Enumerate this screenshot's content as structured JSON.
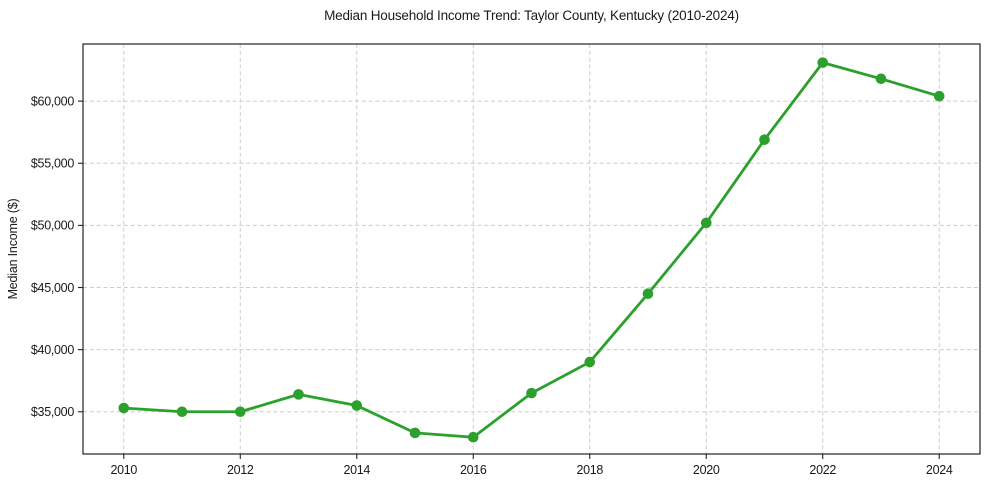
{
  "chart_data": {
    "type": "line",
    "title": "Median Household Income Trend: Taylor County, Kentucky (2010-2024)",
    "xlabel": "",
    "ylabel": "Median Income ($)",
    "x": [
      2010,
      2011,
      2012,
      2013,
      2014,
      2015,
      2016,
      2017,
      2018,
      2019,
      2020,
      2021,
      2022,
      2023,
      2024
    ],
    "series": [
      {
        "name": "Median Household Income",
        "values": [
          35300,
          35000,
          35000,
          36400,
          35500,
          33300,
          32950,
          36500,
          39000,
          44500,
          50200,
          56900,
          63100,
          61800,
          60400
        ]
      }
    ],
    "xticks": [
      2010,
      2012,
      2014,
      2016,
      2018,
      2020,
      2022,
      2024
    ],
    "xtick_labels": [
      "2010",
      "2012",
      "2014",
      "2016",
      "2018",
      "2020",
      "2022",
      "2024"
    ],
    "yticks": [
      35000,
      40000,
      45000,
      50000,
      55000,
      60000
    ],
    "ytick_labels": [
      "$35,000",
      "$40,000",
      "$45,000",
      "$50,000",
      "$55,000",
      "$60,000"
    ],
    "xlim": [
      2009.3,
      2024.7
    ],
    "ylim": [
      31600,
      64600
    ],
    "grid": true,
    "legend": "none",
    "line_color": "#2ca02c",
    "marker_color": "#2ca02c",
    "grid_color": "#cccccc",
    "spine_color": "#222222",
    "tick_color": "#222222"
  }
}
